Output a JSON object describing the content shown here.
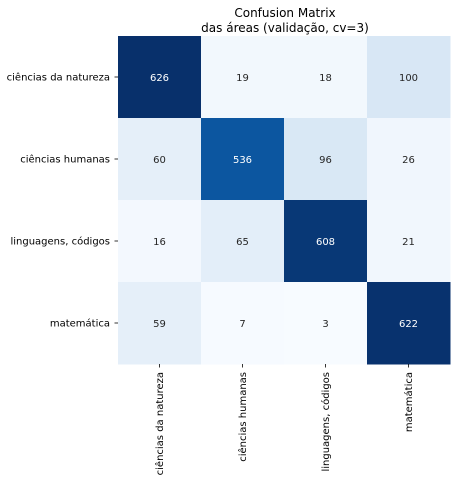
{
  "chart_data": {
    "type": "heatmap",
    "title_lines": [
      "Confusion Matrix",
      "das áreas (validação, cv=3)"
    ],
    "row_labels": [
      "ciências da natureza",
      "ciências humanas",
      "linguagens, códigos",
      "matemática"
    ],
    "col_labels": [
      "ciências da natureza",
      "ciências humanas",
      "linguagens, códigos",
      "matemática"
    ],
    "values": [
      [
        626,
        19,
        18,
        100
      ],
      [
        60,
        536,
        96,
        26
      ],
      [
        16,
        65,
        608,
        21
      ],
      [
        59,
        7,
        3,
        622
      ]
    ],
    "colormap": "Blues",
    "color_min": 3,
    "color_max": 626,
    "colorbar": false,
    "grid": false,
    "xlabel": "",
    "ylabel": ""
  }
}
